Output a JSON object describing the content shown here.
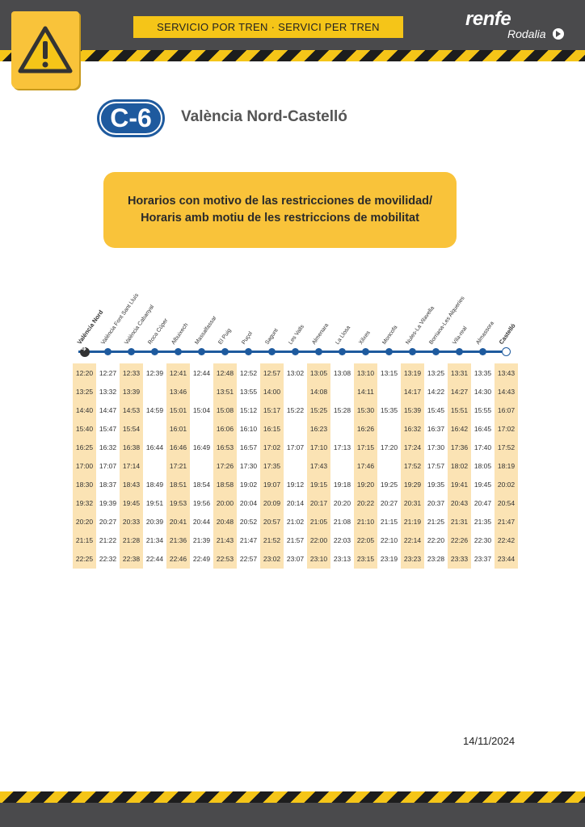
{
  "header": {
    "banner": "SERVICIO POR TREN · SERVICI PER TREN",
    "brand": "renfe",
    "sub_brand": "Rodalia",
    "warning_icon": "warning-triangle-icon"
  },
  "line": {
    "badge": "C-6",
    "title": "València Nord-Castelló",
    "color": "#1e5a9e"
  },
  "notice": {
    "line1": "Horarios con motivo de las restricciones de movilidad/",
    "line2": "Horaris amb motiu de les restriccions de mobilitat"
  },
  "stations": [
    "València Nord",
    "València Font Sant Lluís",
    "València Cabanyal",
    "Roca Cúper",
    "Albuixech",
    "Massalfassar",
    "El Puig",
    "Puçol",
    "Sagunt",
    "Les Valls",
    "Almenara",
    "La Llosa",
    "Xilxes",
    "Moncofa",
    "Nules-La Vilavella",
    "Borriana-Les Alqueries",
    "Vila-real",
    "Almassora",
    "Castelló"
  ],
  "timetable": [
    [
      "12:20",
      "12:27",
      "12:33",
      "12:39",
      "12:41",
      "12:44",
      "12:48",
      "12:52",
      "12:57",
      "13:02",
      "13:05",
      "13:08",
      "13:10",
      "13:15",
      "13:19",
      "13:25",
      "13:31",
      "13:35",
      "13:43"
    ],
    [
      "13:25",
      "13:32",
      "13:39",
      "",
      "13:46",
      "",
      "13:51",
      "13:55",
      "14:00",
      "",
      "14:08",
      "",
      "14:11",
      "",
      "14:17",
      "14:22",
      "14:27",
      "14:30",
      "14:43"
    ],
    [
      "14:40",
      "14:47",
      "14:53",
      "14:59",
      "15:01",
      "15:04",
      "15:08",
      "15:12",
      "15:17",
      "15:22",
      "15:25",
      "15:28",
      "15:30",
      "15:35",
      "15:39",
      "15:45",
      "15:51",
      "15:55",
      "16:07"
    ],
    [
      "15:40",
      "15:47",
      "15:54",
      "",
      "16:01",
      "",
      "16:06",
      "16:10",
      "16:15",
      "",
      "16:23",
      "",
      "16:26",
      "",
      "16:32",
      "16:37",
      "16:42",
      "16:45",
      "17:02"
    ],
    [
      "16:25",
      "16:32",
      "16:38",
      "16:44",
      "16:46",
      "16:49",
      "16:53",
      "16:57",
      "17:02",
      "17:07",
      "17:10",
      "17:13",
      "17:15",
      "17:20",
      "17:24",
      "17:30",
      "17:36",
      "17:40",
      "17:52"
    ],
    [
      "17:00",
      "17:07",
      "17:14",
      "",
      "17:21",
      "",
      "17:26",
      "17:30",
      "17:35",
      "",
      "17:43",
      "",
      "17:46",
      "",
      "17:52",
      "17:57",
      "18:02",
      "18:05",
      "18:19"
    ],
    [
      "18:30",
      "18:37",
      "18:43",
      "18:49",
      "18:51",
      "18:54",
      "18:58",
      "19:02",
      "19:07",
      "19:12",
      "19:15",
      "19:18",
      "19:20",
      "19:25",
      "19:29",
      "19:35",
      "19:41",
      "19:45",
      "20:02"
    ],
    [
      "19:32",
      "19:39",
      "19:45",
      "19:51",
      "19:53",
      "19:56",
      "20:00",
      "20:04",
      "20:09",
      "20:14",
      "20:17",
      "20:20",
      "20:22",
      "20:27",
      "20:31",
      "20:37",
      "20:43",
      "20:47",
      "20:54"
    ],
    [
      "20:20",
      "20:27",
      "20:33",
      "20:39",
      "20:41",
      "20:44",
      "20:48",
      "20:52",
      "20:57",
      "21:02",
      "21:05",
      "21:08",
      "21:10",
      "21:15",
      "21:19",
      "21:25",
      "21:31",
      "21:35",
      "21:47"
    ],
    [
      "21:15",
      "21:22",
      "21:28",
      "21:34",
      "21:36",
      "21:39",
      "21:43",
      "21:47",
      "21:52",
      "21:57",
      "22:00",
      "22:03",
      "22:05",
      "22:10",
      "22:14",
      "22:20",
      "22:26",
      "22:30",
      "22:42"
    ],
    [
      "22:25",
      "22:32",
      "22:38",
      "22:44",
      "22:46",
      "22:49",
      "22:53",
      "22:57",
      "23:02",
      "23:07",
      "23:10",
      "23:13",
      "23:15",
      "23:19",
      "23:23",
      "23:28",
      "23:33",
      "23:37",
      "23:44"
    ]
  ],
  "footer": {
    "date": "14/11/2024"
  }
}
